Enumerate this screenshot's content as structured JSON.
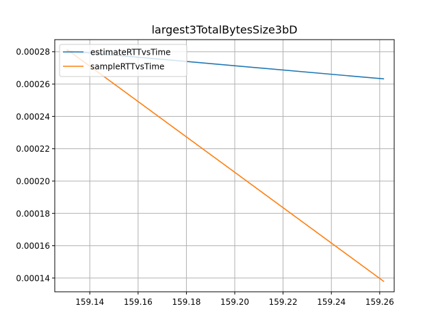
{
  "chart_data": {
    "type": "line",
    "title": "largest3TotalBytesSize3bD",
    "xlabel": "",
    "ylabel": "",
    "xlim": [
      159.1255,
      159.266
    ],
    "ylim": [
      0.0001315,
      0.0002875
    ],
    "x_ticks": [
      159.14,
      159.16,
      159.18,
      159.2,
      159.22,
      159.24,
      159.26
    ],
    "x_tick_labels": [
      "159.14",
      "159.16",
      "159.18",
      "159.20",
      "159.22",
      "159.24",
      "159.26"
    ],
    "y_ticks": [
      0.00014,
      0.00016,
      0.00018,
      0.0002,
      0.00022,
      0.00024,
      0.00026,
      0.00028
    ],
    "y_tick_labels": [
      "0.00014",
      "0.00016",
      "0.00018",
      "0.00020",
      "0.00022",
      "0.00024",
      "0.00026",
      "0.00028"
    ],
    "grid": true,
    "legend_position": "upper-left",
    "series": [
      {
        "name": "estimateRTTvsTime",
        "color": "#1f77b4",
        "x": [
          159.1305,
          159.2618
        ],
        "y": [
          0.0002805,
          0.0002632
        ]
      },
      {
        "name": "sampleRTTvsTime",
        "color": "#ff7f0e",
        "x": [
          159.1305,
          159.2618
        ],
        "y": [
          0.0002815,
          0.0001378
        ]
      }
    ]
  }
}
